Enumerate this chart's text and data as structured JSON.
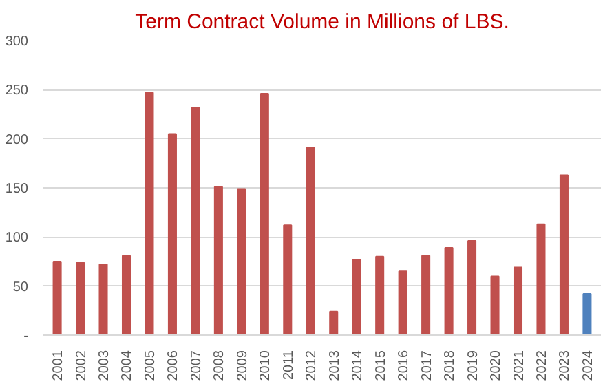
{
  "chart_data": {
    "type": "bar",
    "title": "Term Contract Volume in Millions of LBS.",
    "categories": [
      "2001",
      "2002",
      "2003",
      "2004",
      "2005",
      "2006",
      "2007",
      "2008",
      "2009",
      "2010",
      "2011",
      "2012",
      "2013",
      "2014",
      "2015",
      "2016",
      "2017",
      "2018",
      "2019",
      "2020",
      "2021",
      "2022",
      "2023",
      "2024"
    ],
    "values": [
      75,
      74,
      72,
      81,
      247,
      205,
      232,
      151,
      149,
      246,
      112,
      191,
      24,
      77,
      80,
      65,
      81,
      89,
      96,
      60,
      69,
      113,
      163,
      42
    ],
    "colors": [
      "#c0504d",
      "#c0504d",
      "#c0504d",
      "#c0504d",
      "#c0504d",
      "#c0504d",
      "#c0504d",
      "#c0504d",
      "#c0504d",
      "#c0504d",
      "#c0504d",
      "#c0504d",
      "#c0504d",
      "#c0504d",
      "#c0504d",
      "#c0504d",
      "#c0504d",
      "#c0504d",
      "#c0504d",
      "#c0504d",
      "#c0504d",
      "#c0504d",
      "#c0504d",
      "#4f81bd"
    ],
    "ylim": [
      0,
      300
    ],
    "yticks": [
      {
        "value": 0,
        "label": "-"
      },
      50,
      100,
      150,
      200,
      250,
      300
    ],
    "grid": "y"
  }
}
